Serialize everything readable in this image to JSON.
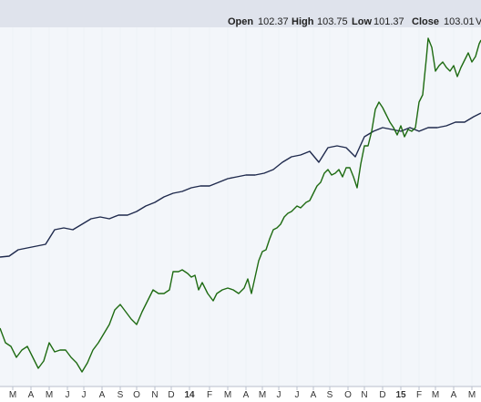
{
  "ohlc": {
    "open_label": "Open",
    "open_value": "102.37",
    "high_label": "High",
    "high_value": "103.75",
    "low_label": "Low",
    "low_value": "101.37",
    "close_label": "Close",
    "close_value": "103.01",
    "trailing": "V"
  },
  "colors": {
    "plot_bg": "#f3f6fa",
    "header_bg": "#dfe3ec",
    "series_navy": "#1f2a4d",
    "series_green": "#1e6b12",
    "grid": "#d4dae6",
    "axis": "#b9bfcc"
  },
  "chart_data": {
    "type": "line",
    "x_tick_labels": [
      "M",
      "A",
      "M",
      "J",
      "J",
      "A",
      "S",
      "O",
      "N",
      "D",
      "14",
      "F",
      "M",
      "A",
      "M",
      "J",
      "J",
      "A",
      "S",
      "O",
      "N",
      "D",
      "15",
      "F",
      "M",
      "A",
      "M"
    ],
    "year_labels": [
      "14",
      "15"
    ],
    "series": [
      {
        "color": "#1f2a4d",
        "points": [
          [
            0,
            282
          ],
          [
            10,
            281
          ],
          [
            20,
            274
          ],
          [
            30,
            272
          ],
          [
            40,
            270
          ],
          [
            50,
            268
          ],
          [
            60,
            252
          ],
          [
            70,
            250
          ],
          [
            80,
            252
          ],
          [
            90,
            246
          ],
          [
            100,
            240
          ],
          [
            110,
            238
          ],
          [
            120,
            240
          ],
          [
            130,
            236
          ],
          [
            140,
            236
          ],
          [
            150,
            232
          ],
          [
            160,
            226
          ],
          [
            170,
            222
          ],
          [
            180,
            216
          ],
          [
            190,
            212
          ],
          [
            200,
            210
          ],
          [
            210,
            206
          ],
          [
            220,
            204
          ],
          [
            230,
            204
          ],
          [
            240,
            200
          ],
          [
            250,
            196
          ],
          [
            260,
            194
          ],
          [
            270,
            192
          ],
          [
            280,
            192
          ],
          [
            290,
            190
          ],
          [
            300,
            186
          ],
          [
            310,
            178
          ],
          [
            320,
            172
          ],
          [
            330,
            170
          ],
          [
            340,
            166
          ],
          [
            350,
            178
          ],
          [
            360,
            162
          ],
          [
            370,
            160
          ],
          [
            380,
            162
          ],
          [
            390,
            172
          ],
          [
            400,
            150
          ],
          [
            410,
            144
          ],
          [
            420,
            140
          ],
          [
            430,
            142
          ],
          [
            440,
            144
          ],
          [
            450,
            140
          ],
          [
            460,
            144
          ],
          [
            470,
            140
          ],
          [
            480,
            140
          ],
          [
            490,
            138
          ],
          [
            500,
            134
          ],
          [
            510,
            134
          ],
          [
            520,
            128
          ],
          [
            528,
            124
          ]
        ]
      },
      {
        "color": "#1e6b12",
        "points": [
          [
            0,
            360
          ],
          [
            6,
            376
          ],
          [
            12,
            380
          ],
          [
            18,
            392
          ],
          [
            24,
            384
          ],
          [
            30,
            380
          ],
          [
            36,
            392
          ],
          [
            42,
            404
          ],
          [
            48,
            396
          ],
          [
            54,
            376
          ],
          [
            60,
            386
          ],
          [
            66,
            384
          ],
          [
            72,
            384
          ],
          [
            78,
            392
          ],
          [
            84,
            398
          ],
          [
            90,
            408
          ],
          [
            96,
            398
          ],
          [
            102,
            384
          ],
          [
            108,
            376
          ],
          [
            114,
            366
          ],
          [
            120,
            356
          ],
          [
            126,
            340
          ],
          [
            132,
            334
          ],
          [
            138,
            342
          ],
          [
            144,
            350
          ],
          [
            150,
            356
          ],
          [
            156,
            342
          ],
          [
            162,
            330
          ],
          [
            168,
            318
          ],
          [
            174,
            322
          ],
          [
            180,
            322
          ],
          [
            186,
            318
          ],
          [
            190,
            298
          ],
          [
            196,
            298
          ],
          [
            200,
            296
          ],
          [
            206,
            300
          ],
          [
            210,
            304
          ],
          [
            214,
            302
          ],
          [
            218,
            318
          ],
          [
            222,
            310
          ],
          [
            228,
            322
          ],
          [
            234,
            330
          ],
          [
            238,
            322
          ],
          [
            244,
            318
          ],
          [
            250,
            316
          ],
          [
            256,
            318
          ],
          [
            262,
            322
          ],
          [
            268,
            316
          ],
          [
            272,
            306
          ],
          [
            276,
            322
          ],
          [
            280,
            304
          ],
          [
            284,
            286
          ],
          [
            288,
            276
          ],
          [
            292,
            274
          ],
          [
            296,
            262
          ],
          [
            300,
            252
          ],
          [
            304,
            250
          ],
          [
            308,
            246
          ],
          [
            312,
            238
          ],
          [
            316,
            234
          ],
          [
            320,
            232
          ],
          [
            326,
            226
          ],
          [
            330,
            228
          ],
          [
            336,
            222
          ],
          [
            340,
            220
          ],
          [
            344,
            212
          ],
          [
            348,
            204
          ],
          [
            352,
            200
          ],
          [
            356,
            190
          ],
          [
            360,
            186
          ],
          [
            364,
            192
          ],
          [
            368,
            190
          ],
          [
            372,
            186
          ],
          [
            376,
            194
          ],
          [
            380,
            184
          ],
          [
            384,
            184
          ],
          [
            388,
            194
          ],
          [
            392,
            206
          ],
          [
            396,
            180
          ],
          [
            400,
            160
          ],
          [
            404,
            160
          ],
          [
            408,
            144
          ],
          [
            412,
            120
          ],
          [
            416,
            112
          ],
          [
            420,
            118
          ],
          [
            424,
            126
          ],
          [
            428,
            134
          ],
          [
            432,
            140
          ],
          [
            436,
            148
          ],
          [
            440,
            138
          ],
          [
            444,
            150
          ],
          [
            448,
            142
          ],
          [
            452,
            144
          ],
          [
            456,
            140
          ],
          [
            460,
            112
          ],
          [
            464,
            104
          ],
          [
            468,
            64
          ],
          [
            470,
            42
          ],
          [
            474,
            52
          ],
          [
            478,
            78
          ],
          [
            482,
            72
          ],
          [
            486,
            68
          ],
          [
            490,
            74
          ],
          [
            494,
            78
          ],
          [
            498,
            72
          ],
          [
            502,
            84
          ],
          [
            506,
            74
          ],
          [
            510,
            66
          ],
          [
            514,
            58
          ],
          [
            518,
            68
          ],
          [
            522,
            62
          ],
          [
            526,
            48
          ],
          [
            528,
            44
          ]
        ]
      }
    ]
  }
}
